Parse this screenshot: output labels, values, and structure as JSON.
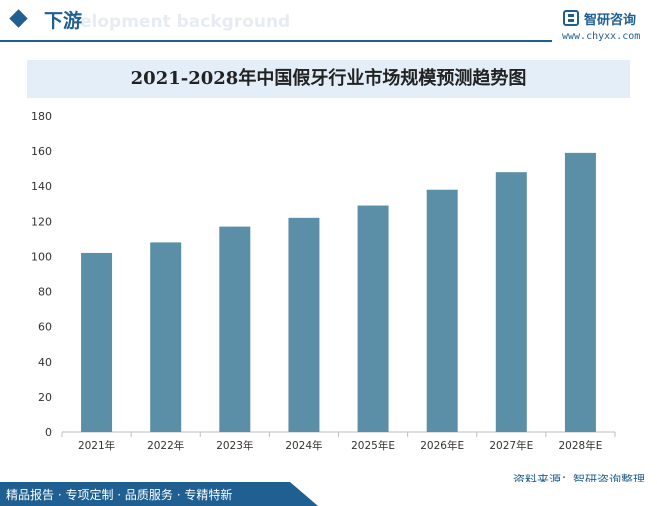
{
  "header": {
    "section_title": "下游",
    "background_word": "elopment background"
  },
  "brand": {
    "logo_text": "智研咨询",
    "url": "www.chyxx.com"
  },
  "source": "资料来源：智研咨询整理",
  "footer": {
    "text": "精品报告 · 专项定制 · 品质服务 · 专精特新"
  },
  "colors": {
    "brand_blue": "#1f5f92",
    "bar": "#5b8fa8",
    "title_band": "#e3eef8"
  },
  "chart_data": {
    "type": "bar",
    "title": "2021-2028年中国假牙行业市场规模预测趋势图",
    "categories": [
      "2021年",
      "2022年",
      "2023年",
      "2024年",
      "2025年E",
      "2026年E",
      "2027年E",
      "2028年E"
    ],
    "values": [
      102,
      108,
      117,
      122,
      129,
      138,
      148,
      159
    ],
    "ylim": [
      0,
      180
    ],
    "yticks": [
      0,
      20,
      40,
      60,
      80,
      100,
      120,
      140,
      160,
      180
    ],
    "xlabel": "",
    "ylabel": "",
    "grid": false,
    "legend": "none"
  }
}
